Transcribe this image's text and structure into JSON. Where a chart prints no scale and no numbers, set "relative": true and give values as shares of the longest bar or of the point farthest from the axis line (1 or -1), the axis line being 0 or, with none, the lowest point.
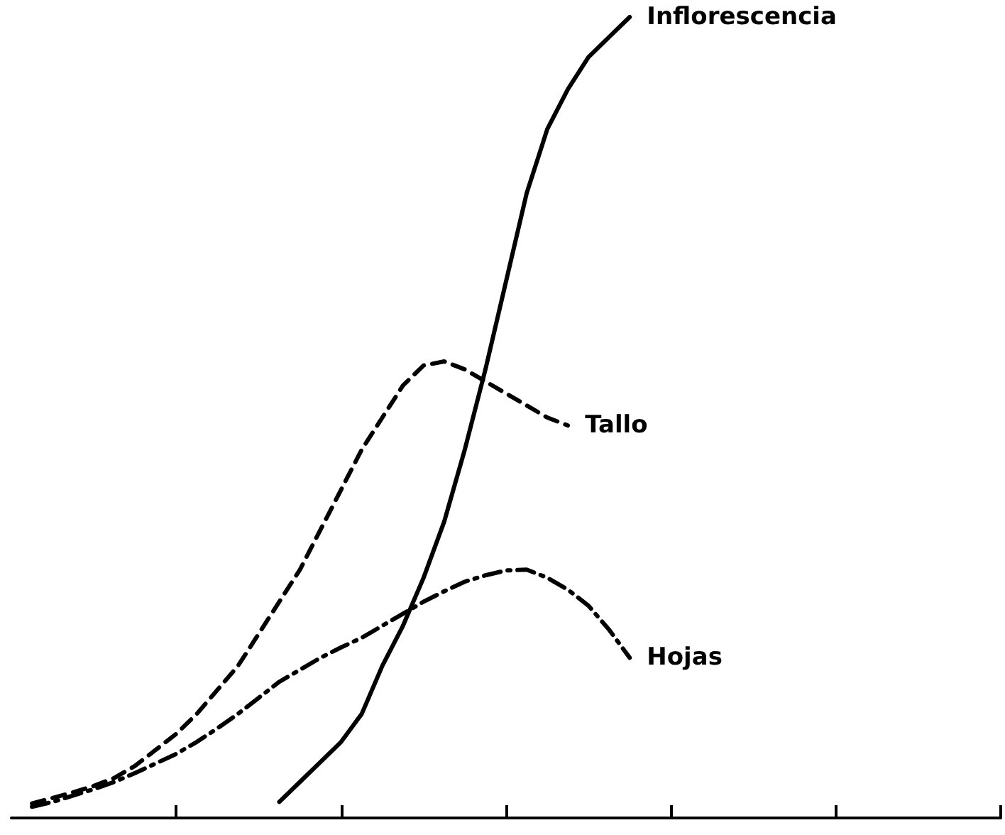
{
  "chart_data": {
    "type": "line",
    "relative": true,
    "categories": [
      null,
      null,
      null,
      null,
      null,
      null,
      null,
      null,
      null,
      null,
      null,
      null,
      null,
      null,
      null,
      null,
      null,
      null,
      null,
      null,
      null,
      null,
      null,
      null,
      null,
      null,
      null,
      null,
      null,
      null,
      null,
      null,
      null,
      null,
      null,
      null,
      null,
      null,
      null,
      null,
      null,
      null,
      null,
      null,
      null,
      null,
      null,
      null,
      null
    ],
    "grid": false,
    "legend": false,
    "marker": "none",
    "series": [
      {
        "name": "Inflorescencia",
        "color": "#000000",
        "line_style": "solid",
        "values": [
          null,
          null,
          null,
          null,
          null,
          null,
          null,
          null,
          null,
          null,
          null,
          null,
          null,
          0.02,
          0.045,
          0.07,
          0.095,
          0.13,
          0.19,
          0.24,
          0.3,
          0.37,
          0.46,
          0.56,
          0.67,
          0.78,
          0.86,
          0.91,
          0.95,
          0.975,
          1,
          null,
          null,
          null,
          null,
          null,
          null,
          null,
          null,
          null,
          null,
          null,
          null,
          null,
          null,
          null,
          null,
          null,
          null
        ]
      },
      {
        "name": "Tallo",
        "color": "#000000",
        "line_style": "dashed",
        "values": [
          null,
          0.018,
          0.025,
          0.032,
          0.04,
          0.05,
          0.065,
          0.085,
          0.105,
          0.13,
          0.16,
          0.19,
          0.23,
          0.27,
          0.31,
          0.36,
          0.41,
          0.46,
          0.5,
          0.54,
          0.565,
          0.57,
          0.56,
          0.545,
          0.53,
          0.515,
          0.5,
          0.49,
          null,
          null,
          null,
          null,
          null,
          null,
          null,
          null,
          null,
          null,
          null,
          null,
          null,
          null,
          null,
          null,
          null,
          null,
          null,
          null,
          null
        ]
      },
      {
        "name": "Hojas",
        "color": "#000000",
        "line_style": "dotted",
        "values": [
          null,
          0.014,
          0.02,
          0.028,
          0.036,
          0.045,
          0.056,
          0.068,
          0.08,
          0.095,
          0.112,
          0.13,
          0.15,
          0.17,
          0.185,
          0.2,
          0.213,
          0.225,
          0.24,
          0.255,
          0.27,
          0.283,
          0.295,
          0.303,
          0.309,
          0.31,
          0.3,
          0.285,
          0.265,
          0.235,
          0.2,
          null,
          null,
          null,
          null,
          null,
          null,
          null,
          null,
          null,
          null,
          null,
          null,
          null,
          null,
          null,
          null,
          null,
          null
        ]
      }
    ]
  }
}
